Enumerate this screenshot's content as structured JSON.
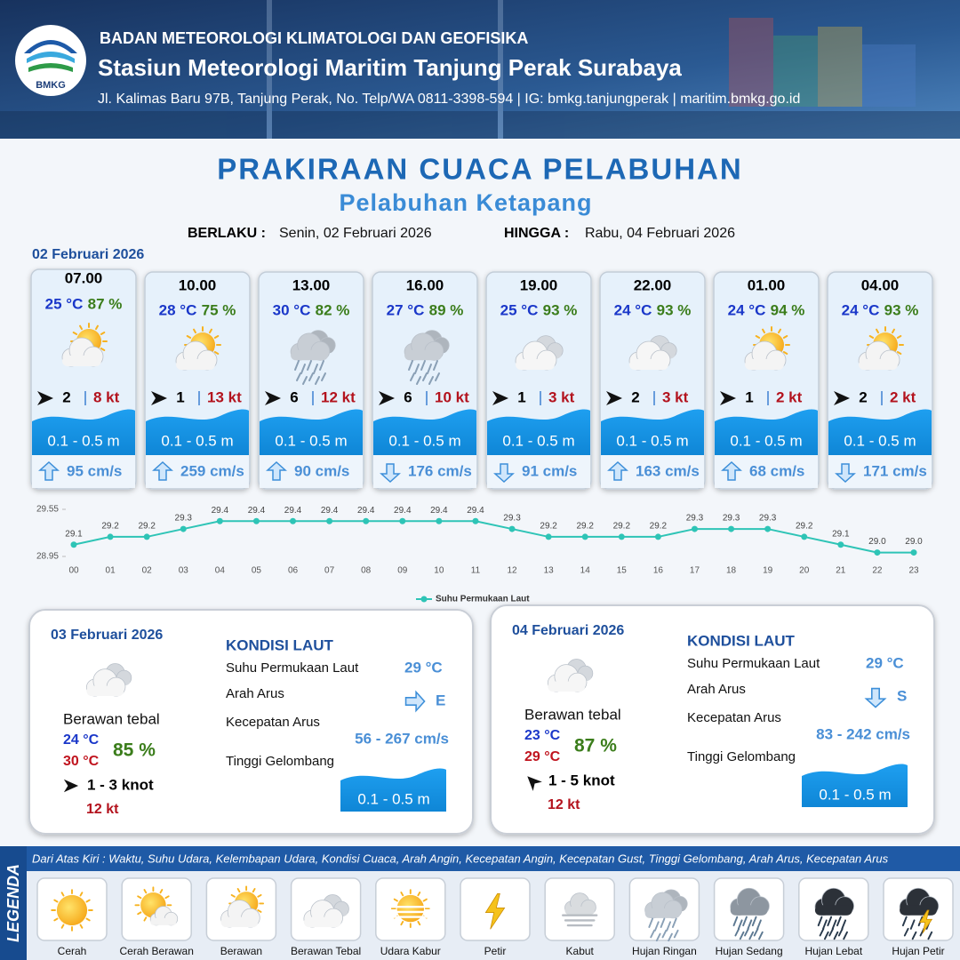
{
  "header": {
    "org": "BADAN METEOROLOGI KLIMATOLOGI DAN GEOFISIKA",
    "station": "Stasiun Meteorologi Maritim Tanjung Perak Surabaya",
    "address": "Jl. Kalimas Baru 97B, Tanjung Perak, No. Telp/WA 0811-3398-594 | IG: bmkg.tanjungperak | maritim.bmkg.go.id",
    "logo_text": "BMKG"
  },
  "title": "PRAKIRAAN CUACA PELABUHAN",
  "subtitle": "Pelabuhan Ketapang",
  "validity": {
    "from_label": "BERLAKU :",
    "from": "Senin, 02 Februari 2026",
    "until_label": "HINGGA :",
    "until": "Rabu, 04 Februari 2026"
  },
  "forecast": {
    "date": "02 Februari 2026",
    "slots": [
      {
        "time": "07.00",
        "temp": "25 °C",
        "rh": "87 %",
        "icon": "Berawan",
        "wind_speed": 2,
        "gust": "8 kt",
        "wave": "0.1 - 0.5 m",
        "current_arrow": "up",
        "current_speed": "95 cm/s"
      },
      {
        "time": "10.00",
        "temp": "28 °C",
        "rh": "75 %",
        "icon": "Berawan",
        "wind_speed": 1,
        "gust": "13 kt",
        "wave": "0.1 - 0.5 m",
        "current_arrow": "up",
        "current_speed": "259 cm/s"
      },
      {
        "time": "13.00",
        "temp": "30 °C",
        "rh": "82 %",
        "icon": "Hujan Ringan",
        "wind_speed": 6,
        "gust": "12 kt",
        "wave": "0.1 - 0.5 m",
        "current_arrow": "up",
        "current_speed": "90 cm/s"
      },
      {
        "time": "16.00",
        "temp": "27 °C",
        "rh": "89 %",
        "icon": "Hujan Ringan",
        "wind_speed": 6,
        "gust": "10 kt",
        "wave": "0.1 - 0.5 m",
        "current_arrow": "down",
        "current_speed": "176 cm/s"
      },
      {
        "time": "19.00",
        "temp": "25 °C",
        "rh": "93 %",
        "icon": "Berawan Tebal",
        "wind_speed": 1,
        "gust": "3 kt",
        "wave": "0.1 - 0.5 m",
        "current_arrow": "down",
        "current_speed": "91 cm/s"
      },
      {
        "time": "22.00",
        "temp": "24 °C",
        "rh": "93 %",
        "icon": "Berawan Tebal",
        "wind_speed": 2,
        "gust": "3 kt",
        "wave": "0.1 - 0.5 m",
        "current_arrow": "up",
        "current_speed": "163 cm/s"
      },
      {
        "time": "01.00",
        "temp": "24 °C",
        "rh": "94 %",
        "icon": "Berawan",
        "wind_speed": 1,
        "gust": "2 kt",
        "wave": "0.1 - 0.5 m",
        "current_arrow": "up",
        "current_speed": "68 cm/s"
      },
      {
        "time": "04.00",
        "temp": "24 °C",
        "rh": "93 %",
        "icon": "Berawan",
        "wind_speed": 2,
        "gust": "2 kt",
        "wave": "0.1 - 0.5 m",
        "current_arrow": "down",
        "current_speed": "171 cm/s"
      }
    ]
  },
  "chart_data": {
    "type": "line",
    "categories": [
      "00",
      "01",
      "02",
      "03",
      "04",
      "05",
      "06",
      "07",
      "08",
      "09",
      "10",
      "11",
      "12",
      "13",
      "14",
      "15",
      "16",
      "17",
      "18",
      "19",
      "20",
      "21",
      "22",
      "23"
    ],
    "series": [
      {
        "name": "Suhu Permukaan Laut",
        "color": "#2ec4b6",
        "values": [
          29.1,
          29.2,
          29.2,
          29.3,
          29.4,
          29.4,
          29.4,
          29.4,
          29.4,
          29.4,
          29.4,
          29.4,
          29.3,
          29.2,
          29.2,
          29.2,
          29.2,
          29.3,
          29.3,
          29.3,
          29.2,
          29.1,
          29.0,
          29.0
        ],
        "value_labels": [
          "29.1",
          "29.2",
          "29.2",
          "29.3",
          "29.4",
          "29.4",
          "29.4",
          "29.4",
          "29.4",
          "29.4",
          "29.4",
          "29.4",
          "29.3",
          "29.2",
          "29.2",
          "29.2",
          "29.2",
          "29.3",
          "29.3",
          "29.3",
          "29.2",
          "29.1",
          "29.0",
          "29.0"
        ]
      }
    ],
    "ylim": [
      28.95,
      29.55
    ],
    "yticks": [
      28.95,
      29.55
    ],
    "legend": "bottom"
  },
  "daily": [
    {
      "date": "03 Februari 2026",
      "icon": "Berawan Tebal",
      "condition": "Berawan tebal",
      "tmin": "24 °C",
      "tmax": "30 °C",
      "rh": "85 %",
      "wind_arrow_deg": 0,
      "wind": "1 - 3 knot",
      "gust": "12 kt",
      "sea": {
        "title": "KONDISI LAUT",
        "sst_label": "Suhu Permukaan Laut",
        "sst": "29 °C",
        "current_dir_label": "Arah Arus",
        "current_dir": "E",
        "current_speed_label": "Kecepatan Arus",
        "current_speed": "56 - 267 cm/s",
        "wave_label": "Tinggi Gelombang",
        "wave": "0.1 - 0.5 m"
      }
    },
    {
      "date": "04 Februari 2026",
      "icon": "Berawan Tebal",
      "condition": "Berawan tebal",
      "tmin": "23 °C",
      "tmax": "29 °C",
      "rh": "87 %",
      "wind_arrow_deg": 225,
      "wind": "1 - 5 knot",
      "gust": "12 kt",
      "sea": {
        "title": "KONDISI LAUT",
        "sst_label": "Suhu Permukaan Laut",
        "sst": "29 °C",
        "current_dir_label": "Arah Arus",
        "current_dir": "S",
        "current_speed_label": "Kecepatan Arus",
        "current_speed": "83 - 242 cm/s",
        "wave_label": "Tinggi Gelombang",
        "wave": "0.1 - 0.5 m"
      }
    }
  ],
  "legend": {
    "title": "LEGENDA",
    "description": "Dari Atas Kiri : Waktu, Suhu Udara, Kelembapan Udara, Kondisi Cuaca, Arah Angin, Kecepatan Angin, Kecepatan Gust, Tinggi Gelombang, Arah Arus, Kecepatan Arus",
    "items": [
      "Cerah",
      "Cerah Berawan",
      "Berawan",
      "Berawan Tebal",
      "Udara Kabur",
      "Petir",
      "Kabut",
      "Hujan Ringan",
      "Hujan Sedang",
      "Hujan Lebat",
      "Hujan Petir"
    ]
  }
}
